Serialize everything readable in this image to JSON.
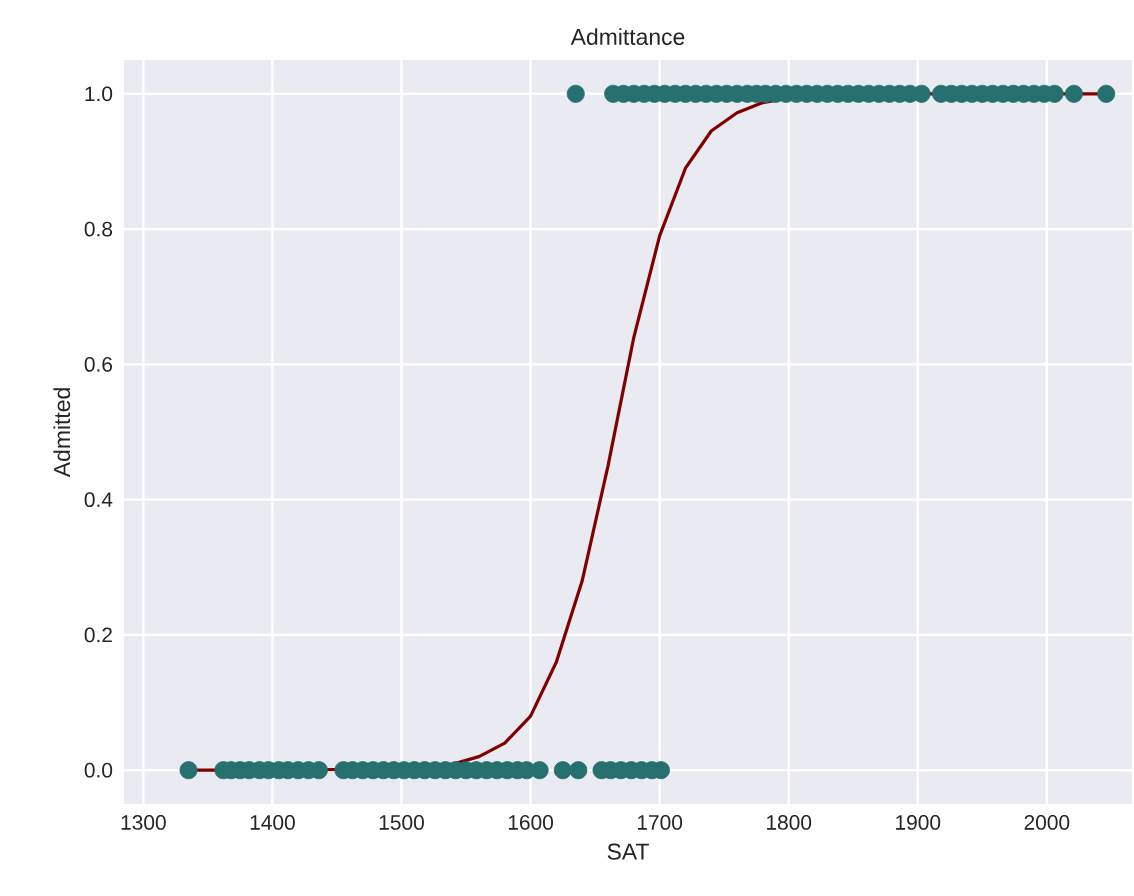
{
  "chart_data": {
    "type": "scatter",
    "title": "Admittance",
    "xlabel": "SAT",
    "ylabel": "Admitted",
    "xlim": [
      1285,
      2066
    ],
    "ylim": [
      -0.05,
      1.05
    ],
    "xticks": [
      1300,
      1400,
      1500,
      1600,
      1700,
      1800,
      1900,
      2000
    ],
    "yticks": [
      {
        "value": 0,
        "label": "0.0"
      },
      {
        "value": 0.2,
        "label": "0.2"
      },
      {
        "value": 0.4,
        "label": "0.4"
      },
      {
        "value": 0.6,
        "label": "0.6"
      },
      {
        "value": 0.8,
        "label": "0.8"
      },
      {
        "value": 1,
        "label": "1.0"
      }
    ],
    "grid": true,
    "series": [
      {
        "marker": "circle",
        "color": "#26716f",
        "x": [
          1335,
          1362,
          1368,
          1375,
          1382,
          1390,
          1397,
          1405,
          1412,
          1420,
          1428,
          1436,
          1455,
          1462,
          1470,
          1478,
          1486,
          1494,
          1502,
          1510,
          1518,
          1526,
          1534,
          1542,
          1550,
          1558,
          1566,
          1574,
          1582,
          1590,
          1597,
          1607,
          1625,
          1637,
          1655,
          1662,
          1670,
          1678,
          1686,
          1694,
          1701,
          1635,
          1664,
          1672,
          1680,
          1688,
          1696,
          1704,
          1712,
          1720,
          1728,
          1736,
          1744,
          1752,
          1760,
          1768,
          1775,
          1782,
          1790,
          1798,
          1806,
          1814,
          1822,
          1830,
          1838,
          1846,
          1854,
          1862,
          1870,
          1878,
          1886,
          1894,
          1903,
          1918,
          1926,
          1934,
          1942,
          1950,
          1958,
          1966,
          1974,
          1982,
          1990,
          1998,
          2006,
          2021,
          2046
        ],
        "values": [
          0,
          0,
          0,
          0,
          0,
          0,
          0,
          0,
          0,
          0,
          0,
          0,
          0,
          0,
          0,
          0,
          0,
          0,
          0,
          0,
          0,
          0,
          0,
          0,
          0,
          0,
          0,
          0,
          0,
          0,
          0,
          0,
          0,
          0,
          0,
          0,
          0,
          0,
          0,
          0,
          0,
          1,
          1,
          1,
          1,
          1,
          1,
          1,
          1,
          1,
          1,
          1,
          1,
          1,
          1,
          1,
          1,
          1,
          1,
          1,
          1,
          1,
          1,
          1,
          1,
          1,
          1,
          1,
          1,
          1,
          1,
          1,
          1,
          1,
          1,
          1,
          1,
          1,
          1,
          1,
          1,
          1,
          1,
          1,
          1,
          1,
          1
        ]
      },
      {
        "type": "line",
        "marker": "none",
        "line_style": "solid",
        "color": "#800000",
        "x": [
          1335,
          1400,
          1450,
          1500,
          1540,
          1560,
          1580,
          1600,
          1620,
          1640,
          1660,
          1680,
          1700,
          1720,
          1740,
          1760,
          1780,
          1800,
          1850,
          1900,
          2000,
          2046
        ],
        "values": [
          0,
          0,
          0.001,
          0.003,
          0.009,
          0.02,
          0.04,
          0.08,
          0.16,
          0.28,
          0.45,
          0.64,
          0.79,
          0.89,
          0.945,
          0.972,
          0.987,
          0.994,
          0.999,
          1,
          1,
          1
        ]
      }
    ]
  }
}
